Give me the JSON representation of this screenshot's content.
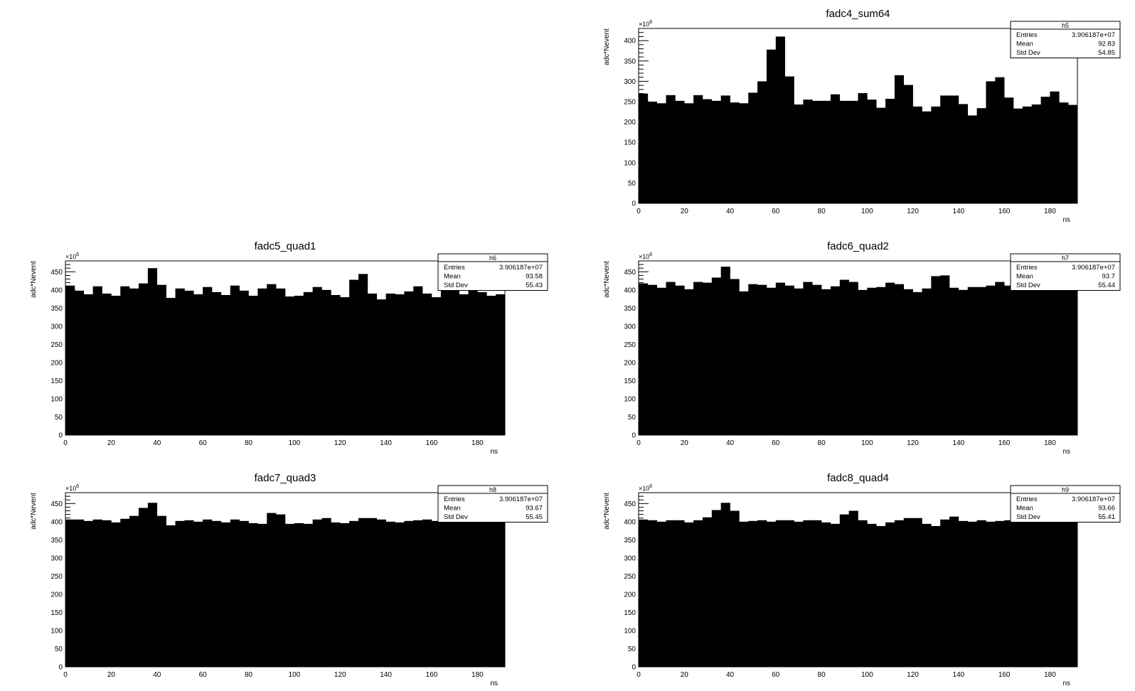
{
  "chart_data": [
    {
      "type": "bar",
      "title": "fadc4_sum64",
      "xlabel": "ns",
      "ylabel": "adc*Nevent",
      "y_multiplier_label": "×10",
      "y_multiplier_exp": "6",
      "xlim": [
        0,
        192
      ],
      "ylim": [
        0,
        430
      ],
      "xticks": [
        0,
        20,
        40,
        60,
        80,
        100,
        120,
        140,
        160,
        180
      ],
      "yticks": [
        0,
        50,
        100,
        150,
        200,
        250,
        300,
        350,
        400
      ],
      "bin_width": 4,
      "color": "#000000",
      "values": [
        270,
        250,
        246,
        266,
        252,
        246,
        266,
        256,
        252,
        265,
        248,
        246,
        272,
        300,
        378,
        410,
        312,
        243,
        255,
        252,
        252,
        268,
        252,
        252,
        271,
        255,
        235,
        257,
        315,
        291,
        238,
        226,
        238,
        265,
        265,
        244,
        216,
        234,
        300,
        310,
        260,
        233,
        238,
        243,
        262,
        275,
        248,
        242
      ],
      "stats": {
        "name": "h5",
        "rows": [
          {
            "label": "Entries",
            "value": "3.906187e+07"
          },
          {
            "label": "Mean",
            "value": "92.83"
          },
          {
            "label": "Std Dev",
            "value": "54.85"
          }
        ]
      }
    },
    {
      "type": "bar",
      "title": "fadc5_quad1",
      "xlabel": "ns",
      "ylabel": "adc*Nevent",
      "y_multiplier_label": "×10",
      "y_multiplier_exp": "6",
      "xlim": [
        0,
        192
      ],
      "ylim": [
        0,
        480
      ],
      "xticks": [
        0,
        20,
        40,
        60,
        80,
        100,
        120,
        140,
        160,
        180
      ],
      "yticks": [
        0,
        50,
        100,
        150,
        200,
        250,
        300,
        350,
        400,
        450
      ],
      "bin_width": 4,
      "color": "#000000",
      "values": [
        412,
        398,
        388,
        410,
        390,
        384,
        410,
        404,
        418,
        460,
        414,
        378,
        404,
        398,
        388,
        408,
        394,
        386,
        412,
        398,
        384,
        404,
        416,
        404,
        382,
        384,
        394,
        408,
        400,
        386,
        380,
        428,
        444,
        390,
        374,
        390,
        388,
        396,
        410,
        390,
        380,
        420,
        400,
        388,
        412,
        394,
        384,
        388
      ],
      "stats": {
        "name": "h6",
        "rows": [
          {
            "label": "Entries",
            "value": "3.906187e+07"
          },
          {
            "label": "Mean",
            "value": "93.58"
          },
          {
            "label": "Std Dev",
            "value": "55.43"
          }
        ]
      }
    },
    {
      "type": "bar",
      "title": "fadc6_quad2",
      "xlabel": "ns",
      "ylabel": "adc*Nevent",
      "y_multiplier_label": "×10",
      "y_multiplier_exp": "6",
      "xlim": [
        0,
        192
      ],
      "ylim": [
        0,
        480
      ],
      "xticks": [
        0,
        20,
        40,
        60,
        80,
        100,
        120,
        140,
        160,
        180
      ],
      "yticks": [
        0,
        50,
        100,
        150,
        200,
        250,
        300,
        350,
        400,
        450
      ],
      "bin_width": 4,
      "color": "#000000",
      "values": [
        418,
        414,
        406,
        422,
        412,
        402,
        422,
        420,
        434,
        464,
        430,
        396,
        416,
        414,
        406,
        420,
        412,
        404,
        422,
        414,
        402,
        410,
        428,
        422,
        400,
        406,
        408,
        420,
        416,
        402,
        394,
        404,
        438,
        440,
        406,
        400,
        408,
        408,
        412,
        422,
        412,
        402,
        412,
        408,
        406,
        406,
        408,
        404
      ],
      "stats": {
        "name": "h7",
        "rows": [
          {
            "label": "Entries",
            "value": "3.906187e+07"
          },
          {
            "label": "Mean",
            "value": "93.7"
          },
          {
            "label": "Std Dev",
            "value": "55.44"
          }
        ]
      }
    },
    {
      "type": "bar",
      "title": "fadc7_quad3",
      "xlabel": "ns",
      "ylabel": "adc*Nevent",
      "y_multiplier_label": "×10",
      "y_multiplier_exp": "6",
      "xlim": [
        0,
        192
      ],
      "ylim": [
        0,
        480
      ],
      "xticks": [
        0,
        20,
        40,
        60,
        80,
        100,
        120,
        140,
        160,
        180
      ],
      "yticks": [
        0,
        50,
        100,
        150,
        200,
        250,
        300,
        350,
        400,
        450
      ],
      "bin_width": 4,
      "color": "#000000",
      "values": [
        406,
        406,
        402,
        406,
        404,
        398,
        408,
        416,
        438,
        452,
        416,
        390,
        402,
        404,
        400,
        406,
        402,
        398,
        406,
        402,
        396,
        394,
        424,
        420,
        394,
        396,
        394,
        406,
        410,
        398,
        396,
        402,
        410,
        410,
        406,
        400,
        398,
        402,
        404,
        406,
        402,
        400,
        402,
        404,
        404,
        402,
        404,
        402
      ],
      "stats": {
        "name": "h8",
        "rows": [
          {
            "label": "Entries",
            "value": "3.906187e+07"
          },
          {
            "label": "Mean",
            "value": "93.67"
          },
          {
            "label": "Std Dev",
            "value": "55.45"
          }
        ]
      }
    },
    {
      "type": "bar",
      "title": "fadc8_quad4",
      "xlabel": "ns",
      "ylabel": "adc*Nevent",
      "y_multiplier_label": "×10",
      "y_multiplier_exp": "6",
      "xlim": [
        0,
        192
      ],
      "ylim": [
        0,
        480
      ],
      "xticks": [
        0,
        20,
        40,
        60,
        80,
        100,
        120,
        140,
        160,
        180
      ],
      "yticks": [
        0,
        50,
        100,
        150,
        200,
        250,
        300,
        350,
        400,
        450
      ],
      "bin_width": 4,
      "color": "#000000",
      "values": [
        406,
        404,
        400,
        404,
        404,
        398,
        404,
        412,
        432,
        452,
        430,
        400,
        402,
        404,
        400,
        404,
        404,
        400,
        404,
        404,
        398,
        394,
        420,
        430,
        404,
        394,
        388,
        398,
        404,
        410,
        410,
        394,
        388,
        406,
        414,
        402,
        400,
        404,
        400,
        402,
        404,
        400,
        402,
        404,
        404,
        402,
        404,
        402
      ],
      "stats": {
        "name": "h9",
        "rows": [
          {
            "label": "Entries",
            "value": "3.906187e+07"
          },
          {
            "label": "Mean",
            "value": "93.66"
          },
          {
            "label": "Std Dev",
            "value": "55.41"
          }
        ]
      }
    }
  ]
}
